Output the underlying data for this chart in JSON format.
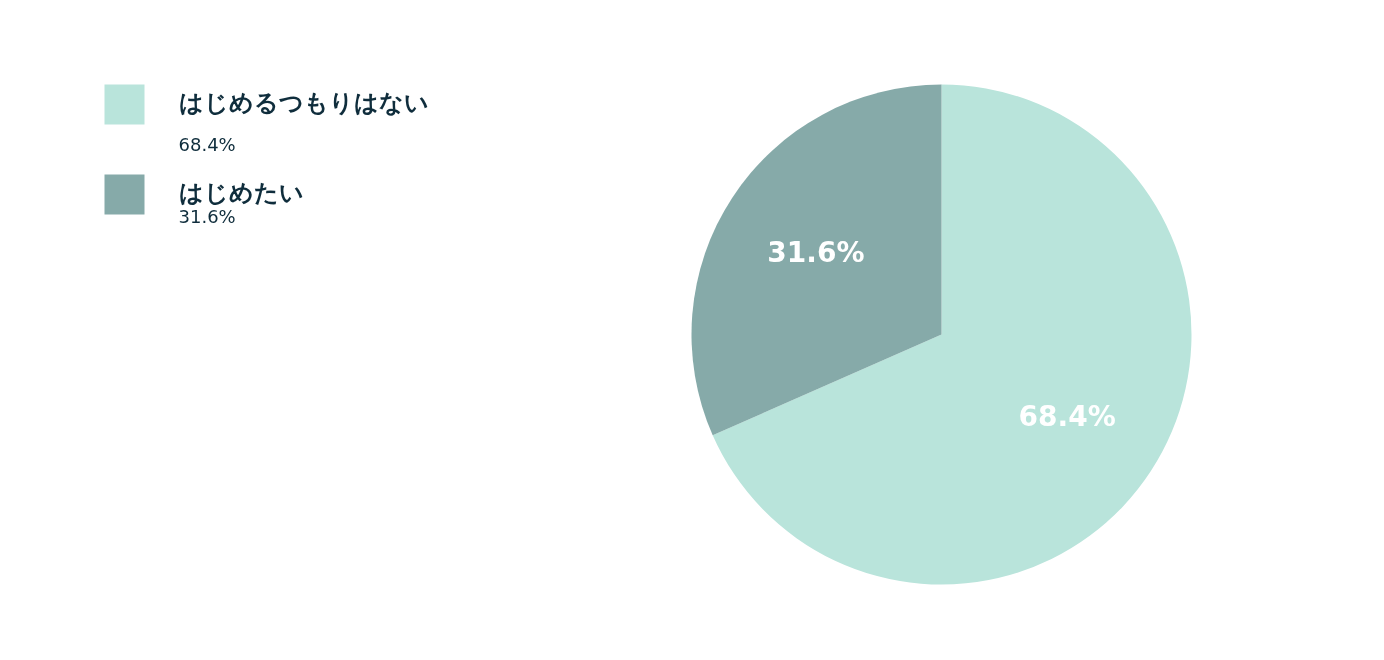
{
  "chart_data": {
    "type": "pie",
    "categories": [
      "はじめるつもりはない",
      "はじめたい"
    ],
    "values": [
      68.4,
      31.6
    ],
    "colors": [
      "#b9e4db",
      "#86aaa9"
    ],
    "value_labels": [
      "68.4%",
      "31.6%"
    ],
    "legend": "top left"
  }
}
